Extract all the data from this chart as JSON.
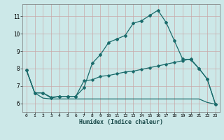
{
  "xlabel": "Humidex (Indice chaleur)",
  "ylabel": "",
  "background_color": "#cce8e8",
  "grid_color": "#c8a8a8",
  "line_color": "#1a6b6b",
  "xlim": [
    -0.5,
    23.5
  ],
  "ylim": [
    5.5,
    11.7
  ],
  "yticks": [
    6,
    7,
    8,
    9,
    10,
    11
  ],
  "xticks": [
    0,
    1,
    2,
    3,
    4,
    5,
    6,
    7,
    8,
    9,
    10,
    11,
    12,
    13,
    14,
    15,
    16,
    17,
    18,
    19,
    20,
    21,
    22,
    23
  ],
  "line1_x": [
    0,
    1,
    2,
    3,
    4,
    5,
    6,
    7,
    8,
    9,
    10,
    11,
    12,
    13,
    14,
    15,
    16,
    17,
    18,
    19,
    20,
    21,
    22,
    23
  ],
  "line1_y": [
    7.9,
    6.6,
    6.6,
    6.3,
    6.4,
    6.4,
    6.4,
    6.9,
    8.3,
    8.8,
    9.5,
    9.7,
    9.9,
    10.6,
    10.75,
    11.05,
    11.35,
    10.65,
    9.6,
    8.55,
    8.5,
    8.0,
    7.4,
    5.95
  ],
  "line2_x": [
    0,
    1,
    2,
    3,
    4,
    5,
    6,
    7,
    8,
    9,
    10,
    11,
    12,
    13,
    14,
    15,
    16,
    17,
    18,
    19,
    20,
    21,
    22,
    23
  ],
  "line2_y": [
    7.9,
    6.6,
    6.6,
    6.35,
    6.4,
    6.4,
    6.4,
    7.3,
    7.35,
    7.55,
    7.6,
    7.7,
    7.8,
    7.85,
    7.95,
    8.05,
    8.15,
    8.25,
    8.35,
    8.45,
    8.55,
    8.0,
    7.4,
    5.95
  ],
  "line3_x": [
    0,
    1,
    2,
    3,
    4,
    5,
    6,
    7,
    8,
    9,
    10,
    11,
    12,
    13,
    14,
    15,
    16,
    17,
    18,
    19,
    20,
    21,
    22,
    23
  ],
  "line3_y": [
    7.9,
    6.6,
    6.3,
    6.25,
    6.25,
    6.25,
    6.25,
    6.25,
    6.25,
    6.25,
    6.25,
    6.25,
    6.25,
    6.25,
    6.25,
    6.25,
    6.25,
    6.25,
    6.25,
    6.25,
    6.25,
    6.25,
    6.05,
    5.95
  ]
}
